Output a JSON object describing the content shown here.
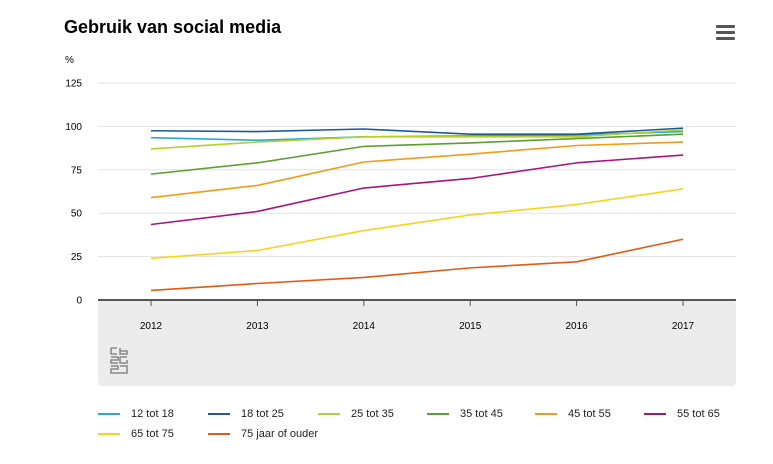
{
  "header": {
    "title": "Gebruik van social media",
    "menu_icon": "hamburger-menu-icon"
  },
  "logo": {
    "icon": "cbs-logo-icon"
  },
  "chart_data": {
    "type": "line",
    "title": "Gebruik van social media",
    "ylabel": "%",
    "xlabel": "",
    "ylim": [
      0,
      125
    ],
    "yticks": [
      0,
      25,
      50,
      75,
      100,
      125
    ],
    "categories": [
      "2012",
      "2013",
      "2014",
      "2015",
      "2016",
      "2017"
    ],
    "grid": true,
    "legend_position": "bottom",
    "series": [
      {
        "name": "12 tot 18",
        "color": "#27a9d8",
        "values": [
          93.5,
          92,
          94,
          94.5,
          95,
          97
        ]
      },
      {
        "name": "18 tot 25",
        "color": "#1c5aa0",
        "values": [
          97.5,
          97,
          98.5,
          95.5,
          95.5,
          99
        ]
      },
      {
        "name": "25 tot 35",
        "color": "#b5cf2f",
        "values": [
          87,
          91,
          94,
          94,
          94,
          98
        ]
      },
      {
        "name": "35 tot 45",
        "color": "#59a02d",
        "values": [
          72.5,
          79,
          88.5,
          90.5,
          93,
          95.5
        ]
      },
      {
        "name": "45 tot 55",
        "color": "#f39b17",
        "values": [
          59,
          66,
          79.5,
          84,
          89,
          91
        ]
      },
      {
        "name": "55 tot 65",
        "color": "#a7147e",
        "values": [
          43.5,
          51,
          64.5,
          70,
          79,
          83.5
        ]
      },
      {
        "name": "65 tot 75",
        "color": "#fbd21a",
        "values": [
          24,
          28.5,
          40,
          49,
          55,
          64
        ]
      },
      {
        "name": "75 jaar of ouder",
        "color": "#e35a14",
        "values": [
          5.5,
          9.5,
          13,
          18.5,
          22,
          35
        ]
      }
    ]
  }
}
